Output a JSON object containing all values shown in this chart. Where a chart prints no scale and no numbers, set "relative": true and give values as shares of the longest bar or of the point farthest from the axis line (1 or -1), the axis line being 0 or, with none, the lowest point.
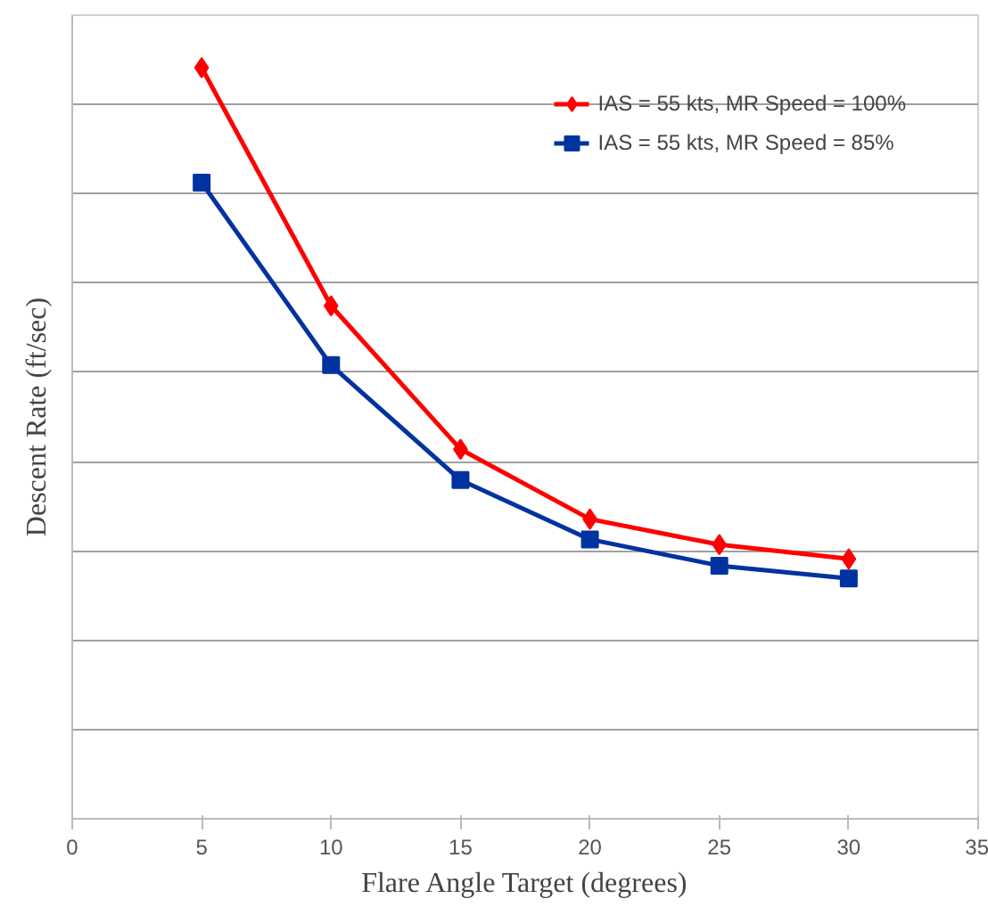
{
  "chart_data": {
    "type": "line",
    "relative": true,
    "xlabel": "Flare Angle Target (degrees)",
    "ylabel": "Descent Rate (ft/sec)",
    "x": [
      5,
      10,
      15,
      20,
      25,
      30
    ],
    "xlim": [
      0,
      35
    ],
    "xticks": [
      0,
      5,
      10,
      15,
      20,
      25,
      30,
      35
    ],
    "series": [
      {
        "name": "IAS = 55 kts, MR Speed = 100%",
        "color": "#ff0000",
        "marker": "diamond",
        "values": [
          1,
          0.683,
          0.492,
          0.399,
          0.365,
          0.346
        ]
      },
      {
        "name": "IAS = 55 kts, MR Speed = 85%",
        "color": "#0033a0",
        "marker": "square",
        "values": [
          0.847,
          0.604,
          0.451,
          0.372,
          0.337,
          0.32
        ]
      }
    ],
    "grid": "y",
    "legend": "top right",
    "tick_labels": "x"
  }
}
